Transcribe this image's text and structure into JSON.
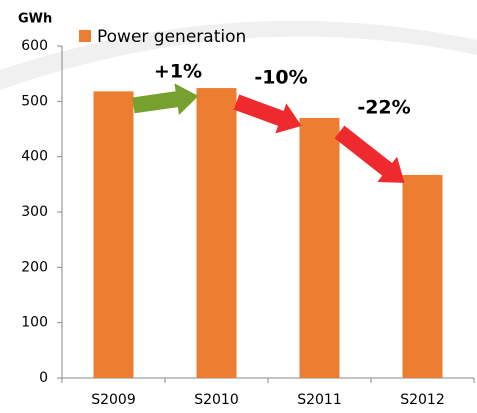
{
  "chart_data": {
    "type": "bar",
    "y_label": "GWh",
    "categories": [
      "S2009",
      "S2010",
      "S2011",
      "S2012"
    ],
    "series": [
      {
        "name": "Power generation",
        "color": "#ed7d31",
        "values": [
          518,
          524,
          470,
          367
        ]
      }
    ],
    "ylim": [
      0,
      600
    ],
    "yticks": [
      0,
      100,
      200,
      300,
      400,
      500,
      600
    ],
    "annotations": [
      {
        "text": "+1%",
        "color": "#77a12e"
      },
      {
        "text": "-10%",
        "color": "#ee2a2e"
      },
      {
        "text": "-22%",
        "color": "#ee2a2e"
      }
    ]
  }
}
